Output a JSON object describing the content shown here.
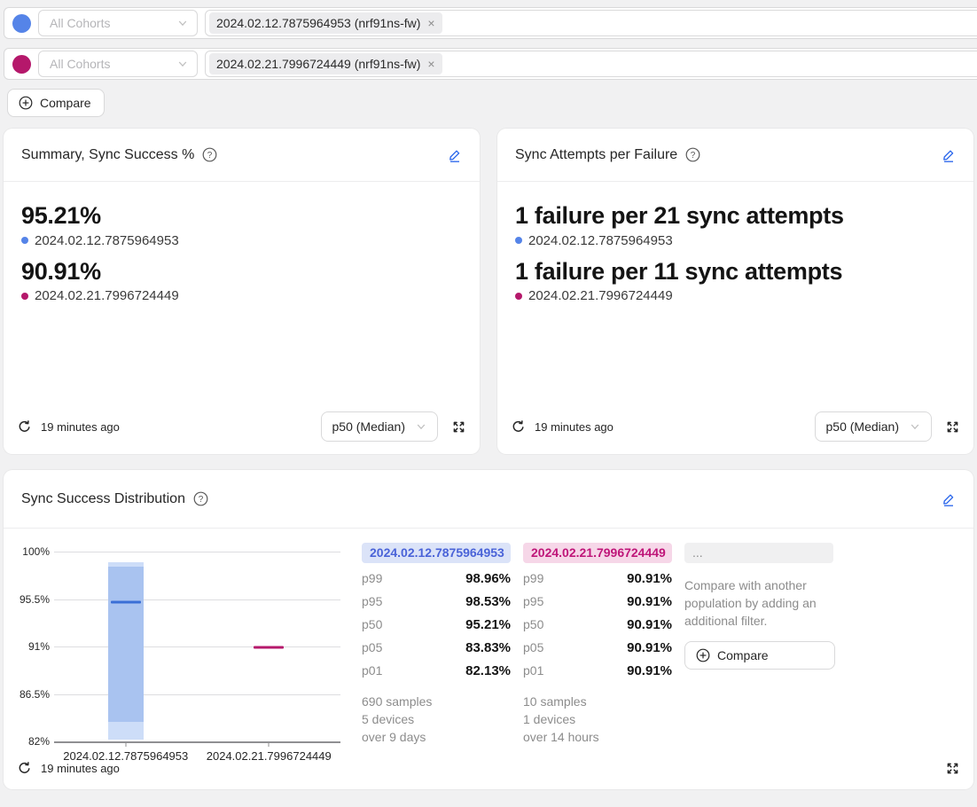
{
  "colors": {
    "series1": "#5584e8",
    "series2": "#b5186b",
    "accent": "#2563eb",
    "band_light": "#cdddf8",
    "band_mid": "#a9c3f0",
    "median_line": "#3b6fd6",
    "pill1_bg": "#dbe3f8",
    "pill1_text": "#4a63d8",
    "pill2_bg": "#f6d7e8",
    "pill2_text": "#bf1679"
  },
  "filters": [
    {
      "cohort_placeholder": "All Cohorts",
      "tag": "2024.02.12.7875964953 (nrf91ns-fw)",
      "remove": "×"
    },
    {
      "cohort_placeholder": "All Cohorts",
      "tag": "2024.02.21.7996724449 (nrf91ns-fw)",
      "remove": "×"
    }
  ],
  "compare_button_label": "Compare",
  "summary_card": {
    "title": "Summary, Sync Success %",
    "metrics": [
      {
        "value": "95.21%",
        "label": "2024.02.12.7875964953"
      },
      {
        "value": "90.91%",
        "label": "2024.02.21.7996724449"
      }
    ],
    "updated": "19 minutes ago",
    "aggregation": "p50 (Median)"
  },
  "attempts_card": {
    "title": "Sync Attempts per Failure",
    "metrics": [
      {
        "value": "1 failure per 21 sync attempts",
        "label": "2024.02.12.7875964953"
      },
      {
        "value": "1 failure per 11 sync attempts",
        "label": "2024.02.21.7996724449"
      }
    ],
    "updated": "19 minutes ago",
    "aggregation": "p50 (Median)"
  },
  "distribution_card": {
    "title": "Sync Success Distribution",
    "updated": "19 minutes ago",
    "columns": [
      {
        "header": "2024.02.12.7875964953",
        "rows": [
          {
            "label": "p99",
            "value": "98.96%"
          },
          {
            "label": "p95",
            "value": "98.53%"
          },
          {
            "label": "p50",
            "value": "95.21%"
          },
          {
            "label": "p05",
            "value": "83.83%"
          },
          {
            "label": "p01",
            "value": "82.13%"
          }
        ],
        "samples": "690 samples",
        "devices": "5 devices",
        "duration": "over 9 days"
      },
      {
        "header": "2024.02.21.7996724449",
        "rows": [
          {
            "label": "p99",
            "value": "90.91%"
          },
          {
            "label": "p95",
            "value": "90.91%"
          },
          {
            "label": "p50",
            "value": "90.91%"
          },
          {
            "label": "p05",
            "value": "90.91%"
          },
          {
            "label": "p01",
            "value": "90.91%"
          }
        ],
        "samples": "10 samples",
        "devices": "1 devices",
        "duration": "over 14 hours"
      }
    ],
    "compare_column": {
      "header": "...",
      "hint": "Compare with another population by adding an additional filter.",
      "button_label": "Compare"
    }
  },
  "chart_data": {
    "type": "boxplot",
    "title": "Sync Success Distribution",
    "categories": [
      "2024.02.12.7875964953",
      "2024.02.21.7996724449"
    ],
    "ylim": [
      82,
      100
    ],
    "grid": true,
    "legend": "none",
    "y_ticks": [
      {
        "value": 100,
        "label": "100%"
      },
      {
        "value": 95.5,
        "label": "95.5%"
      },
      {
        "value": 91,
        "label": "91%"
      },
      {
        "value": 86.5,
        "label": "86.5%"
      },
      {
        "value": 82,
        "label": "82%"
      }
    ],
    "series": [
      {
        "name": "2024.02.12.7875964953",
        "p99": 98.96,
        "p95": 98.53,
        "p50": 95.21,
        "p05": 83.83,
        "p01": 82.13,
        "samples": 690,
        "devices": 5,
        "span": "over 9 days"
      },
      {
        "name": "2024.02.21.7996724449",
        "p99": 90.91,
        "p95": 90.91,
        "p50": 90.91,
        "p05": 90.91,
        "p01": 90.91,
        "samples": 10,
        "devices": 1,
        "span": "over 14 hours"
      }
    ]
  }
}
